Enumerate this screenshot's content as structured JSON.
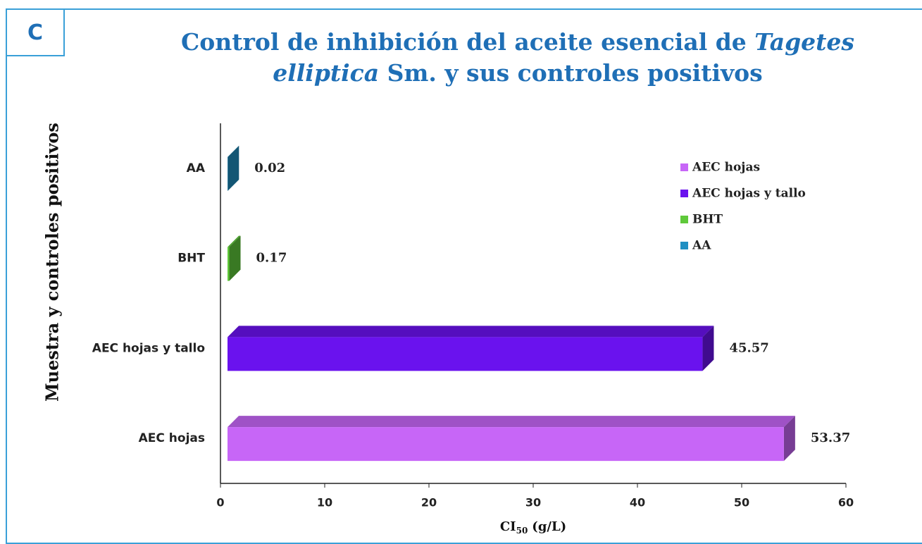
{
  "panel_label": "C",
  "chart_data": {
    "type": "bar3d_horizontal",
    "title": [
      "Control de inhibición del aceite esencial de",
      "Tagetes",
      "elliptica",
      "Sm. y sus controles positivos"
    ],
    "ylabel": "Muestra y controles positivos",
    "xlabel": [
      "CI",
      "50",
      "(g/L)"
    ],
    "categories": [
      "AEC hojas",
      "AEC hojas y tallo",
      "BHT",
      "AA"
    ],
    "values": [
      53.37,
      45.57,
      0.17,
      0.02
    ],
    "colors": [
      "#c766f7",
      "#6a12ee",
      "#5fc93a",
      "#1f8fc2"
    ],
    "xlim": [
      0,
      60
    ],
    "xticks": [
      0,
      10,
      20,
      30,
      40,
      50,
      60
    ],
    "legend": "right"
  }
}
